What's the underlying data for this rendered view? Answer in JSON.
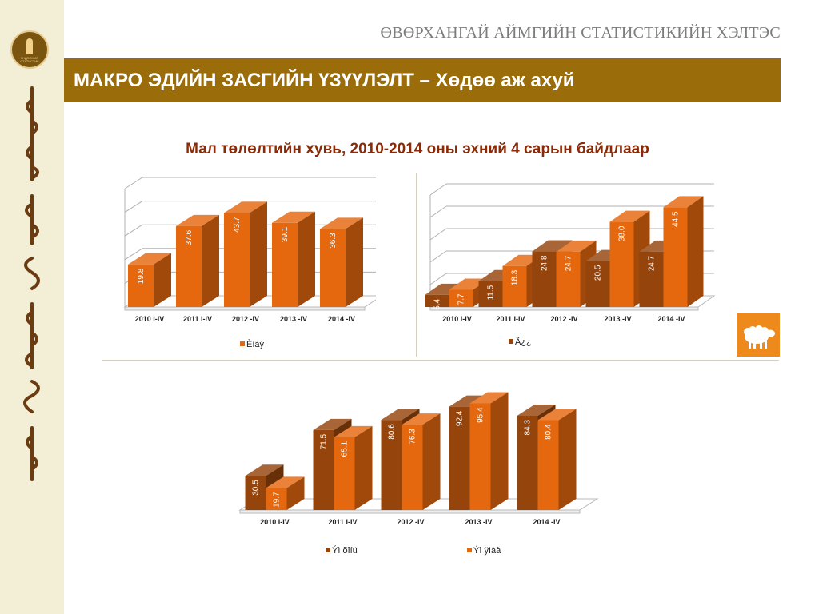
{
  "header": {
    "org_name": "ӨВӨРХАНГАЙ АЙМГИЙН СТАТИСТИКИЙН ХЭЛТЭС",
    "banner_title": "МАКРО ЭДИЙН ЗАСГИЙН ҮЗҮҮЛЭЛТ – Хөдөө аж ахуй",
    "logo_text": "ҮНДЭСНИЙ\nСТАТИСТИК"
  },
  "page": {
    "subtitle": "Мал төлөлтийн хувь, 2010-2014 оны эхний 4 сарын байдлаар"
  },
  "colors": {
    "dark_series": "#95440c",
    "light_series": "#e5680e",
    "banner": "#9a6d0a",
    "subtitle": "#8a2a06",
    "icon_bg": "#ee8a1c"
  },
  "icons": {
    "sheep": "sheep-icon",
    "logo": "soyombo-logo"
  },
  "chart_data": [
    {
      "type": "bar",
      "categories": [
        "2010 I-IV",
        "2011 I-IV",
        "2012 -IV",
        "2013 -IV",
        "2014 -IV"
      ],
      "series": [
        {
          "name": "Èíãý",
          "values": [
            19.8,
            37.6,
            43.7,
            39.1,
            36.3
          ],
          "color": "#e5680e"
        }
      ],
      "ylim": [
        0,
        55
      ],
      "grid": true,
      "legend": "bottom"
    },
    {
      "type": "bar",
      "categories": [
        "2010 I-IV",
        "2011 I-IV",
        "2012 -IV",
        "2013 -IV",
        "2014 -IV"
      ],
      "series": [
        {
          "name": "Ã¿¿",
          "values": [
            5.4,
            11.5,
            24.8,
            20.5,
            24.7
          ],
          "color": "#95440c"
        },
        {
          "values": [
            7.7,
            18.3,
            24.7,
            38.0,
            44.5
          ],
          "color": "#e5680e"
        }
      ],
      "ylim": [
        0,
        50
      ],
      "grid": true,
      "legend": "bottom"
    },
    {
      "type": "bar",
      "categories": [
        "2010 I-IV",
        "2011 I-IV",
        "2012 -IV",
        "2013 -IV",
        "2014 -IV"
      ],
      "series": [
        {
          "name": "Ýì õîíü",
          "values": [
            30.5,
            71.5,
            80.6,
            92.4,
            84.3
          ],
          "color": "#95440c"
        },
        {
          "name": "Ýì ÿìàà",
          "values": [
            19.7,
            65.1,
            76.3,
            95.4,
            80.4
          ],
          "color": "#e5680e"
        }
      ],
      "ylim": [
        0,
        100
      ],
      "grid": false,
      "legend": "bottom"
    }
  ]
}
